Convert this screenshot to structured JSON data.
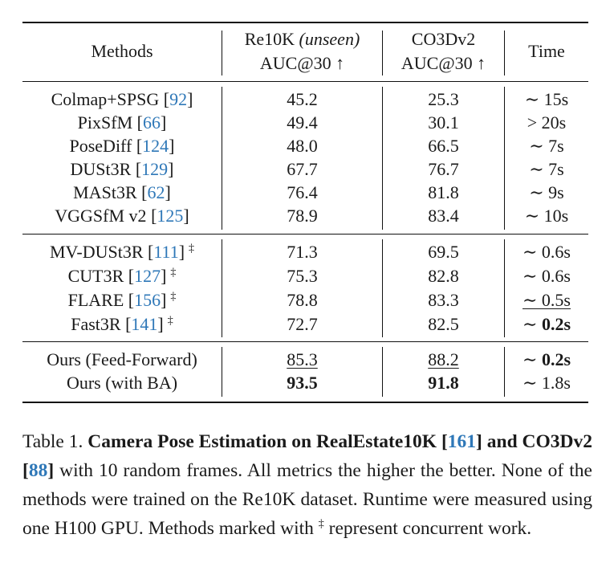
{
  "header": {
    "methods": "Methods",
    "col1_line1": "Re10K",
    "col1_line1_it": "(unseen)",
    "col1_line2": "AUC@30 ↑",
    "col2_line1": "CO3Dv2",
    "col2_line2": "AUC@30 ↑",
    "col3": "Time"
  },
  "rows": [
    {
      "name": "Colmap+SPSG",
      "cite": "92",
      "dagger": "",
      "re10k": "45.2",
      "co3d": "25.3",
      "time": "∼ 15s"
    },
    {
      "name": "PixSfM",
      "cite": "66",
      "dagger": "",
      "re10k": "49.4",
      "co3d": "30.1",
      "time": "> 20s"
    },
    {
      "name": "PoseDiff",
      "cite": "124",
      "dagger": "",
      "re10k": "48.0",
      "co3d": "66.5",
      "time": "∼ 7s"
    },
    {
      "name": "DUSt3R",
      "cite": "129",
      "dagger": "",
      "re10k": "67.7",
      "co3d": "76.7",
      "time": "∼ 7s"
    },
    {
      "name": "MASt3R",
      "cite": "62",
      "dagger": "",
      "re10k": "76.4",
      "co3d": "81.8",
      "time": "∼ 9s"
    },
    {
      "name": "VGGSfM v2",
      "cite": "125",
      "dagger": "",
      "re10k": "78.9",
      "co3d": "83.4",
      "time": "∼ 10s"
    },
    {
      "name": "MV-DUSt3R",
      "cite": "111",
      "dagger": "‡",
      "re10k": "71.3",
      "co3d": "69.5",
      "time": "∼ 0.6s"
    },
    {
      "name": "CUT3R",
      "cite": "127",
      "dagger": "‡",
      "re10k": "75.3",
      "co3d": "82.8",
      "time": "∼ 0.6s"
    },
    {
      "name": "FLARE",
      "cite": "156",
      "dagger": "‡",
      "re10k": "78.8",
      "co3d": "83.3",
      "time": "∼ 0.5s"
    },
    {
      "name": "Fast3R",
      "cite": "141",
      "dagger": "‡",
      "re10k": "72.7",
      "co3d": "82.5",
      "time_prefix": "∼ ",
      "time_value": "0.2s"
    },
    {
      "name": "Ours (Feed-Forward)",
      "re10k": "85.3",
      "co3d": "88.2",
      "time_prefix": "∼ ",
      "time_value": "0.2s"
    },
    {
      "name": "Ours (with BA)",
      "re10k": "93.5",
      "co3d": "91.8",
      "time": "∼ 1.8s"
    }
  ],
  "caption": {
    "label": "Table 1.",
    "bold_part1": "Camera Pose Estimation on RealEstate10K [",
    "cite1": "161",
    "bold_part2": "] and CO3Dv2 [",
    "cite2": "88",
    "bold_part3": "]",
    "text1": " with 10 random frames. All metrics the higher the better. None of the methods were trained on the Re10K dataset. Runtime were measured using one H100 GPU. Methods marked with ",
    "dagger": "‡",
    "text2": " represent concurrent work."
  }
}
